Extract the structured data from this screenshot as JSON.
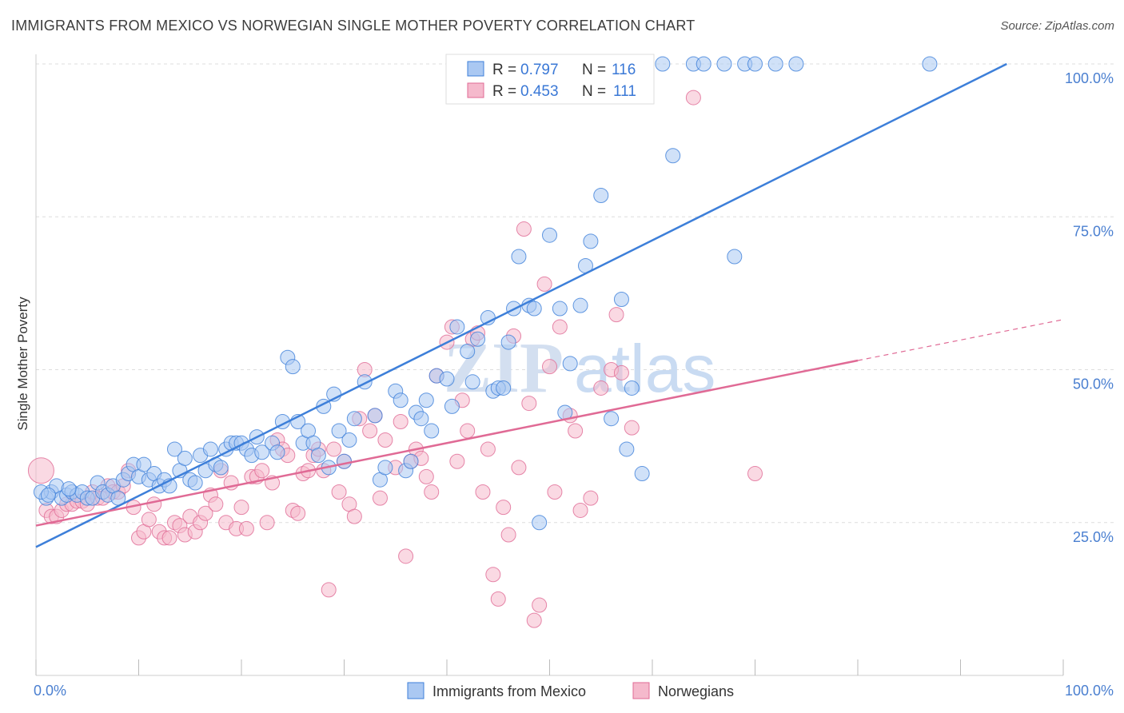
{
  "header": {
    "title": "IMMIGRANTS FROM MEXICO VS NORWEGIAN SINGLE MOTHER POVERTY CORRELATION CHART",
    "source": "Source: ZipAtlas.com"
  },
  "colors": {
    "blue": "#3d7fd9",
    "blue_fill": "#aac8f2",
    "pink": "#e06a95",
    "pink_fill": "#f5b9cc",
    "tick_text": "#4a7fd0",
    "grid": "#dddddd"
  },
  "watermark": {
    "zip": "ZIP",
    "atlas": "atlas"
  },
  "legend": {
    "r_label": "R =",
    "n_label": "N =",
    "entries": [
      {
        "r": "0.797",
        "n": "116"
      },
      {
        "r": "0.453",
        "n": "111"
      }
    ]
  },
  "chart_data": {
    "type": "scatter",
    "title": "IMMIGRANTS FROM MEXICO VS NORWEGIAN SINGLE MOTHER POVERTY CORRELATION CHART",
    "xlabel": "",
    "ylabel": "Single Mother Poverty",
    "xlim": [
      0,
      100
    ],
    "ylim": [
      0,
      100
    ],
    "x_tick_labels": [
      "0.0%",
      "100.0%"
    ],
    "y_ticks": [
      25,
      50,
      75,
      100
    ],
    "y_tick_labels": [
      "25.0%",
      "50.0%",
      "75.0%",
      "100.0%"
    ],
    "grid": true,
    "legend_position": "top-center",
    "series": [
      {
        "name": "Immigrants from Mexico",
        "color": "#3d7fd9",
        "R": 0.797,
        "N": 116,
        "trend": {
          "x": [
            0,
            94.5
          ],
          "y": [
            21.0,
            100.0
          ]
        },
        "points": [
          [
            1,
            29
          ],
          [
            1.5,
            30
          ],
          [
            2,
            31
          ],
          [
            2.5,
            29
          ],
          [
            3,
            29.5
          ],
          [
            3.5,
            30
          ],
          [
            4,
            29.5
          ],
          [
            4.5,
            30
          ],
          [
            5,
            29
          ],
          [
            5.5,
            29
          ],
          [
            6,
            31.5
          ],
          [
            6.5,
            30
          ],
          [
            7,
            29.5
          ],
          [
            7.5,
            31
          ],
          [
            8,
            29
          ],
          [
            8.5,
            32
          ],
          [
            9,
            33
          ],
          [
            9.5,
            34.5
          ],
          [
            10,
            32.5
          ],
          [
            10.5,
            34.5
          ],
          [
            11,
            32
          ],
          [
            11.5,
            33
          ],
          [
            12,
            31
          ],
          [
            12.5,
            32
          ],
          [
            13,
            31
          ],
          [
            13.5,
            37
          ],
          [
            14,
            33.5
          ],
          [
            14.5,
            35.5
          ],
          [
            15,
            32
          ],
          [
            15.5,
            31.5
          ],
          [
            16,
            36
          ],
          [
            16.5,
            33.5
          ],
          [
            17,
            37
          ],
          [
            17.5,
            34.5
          ],
          [
            18,
            34
          ],
          [
            18.5,
            37
          ],
          [
            19,
            38
          ],
          [
            19.5,
            38
          ],
          [
            20,
            38
          ],
          [
            20.5,
            37
          ],
          [
            21,
            36
          ],
          [
            21.5,
            39
          ],
          [
            22,
            36.5
          ],
          [
            23,
            38
          ],
          [
            23.5,
            36.5
          ],
          [
            24,
            41.5
          ],
          [
            24.5,
            52
          ],
          [
            25,
            50.5
          ],
          [
            25.5,
            41.5
          ],
          [
            26,
            38
          ],
          [
            26.5,
            40
          ],
          [
            27,
            38
          ],
          [
            27.5,
            36
          ],
          [
            28,
            44
          ],
          [
            28.5,
            34
          ],
          [
            29,
            46
          ],
          [
            29.5,
            40
          ],
          [
            30,
            35
          ],
          [
            30.5,
            38.5
          ],
          [
            31,
            42
          ],
          [
            32,
            48
          ],
          [
            33,
            42.5
          ],
          [
            33.5,
            32
          ],
          [
            34,
            34
          ],
          [
            35,
            46.5
          ],
          [
            35.5,
            45
          ],
          [
            36,
            33.5
          ],
          [
            36.5,
            35
          ],
          [
            37,
            43
          ],
          [
            37.5,
            42
          ],
          [
            38,
            45
          ],
          [
            38.5,
            40
          ],
          [
            39,
            49
          ],
          [
            40,
            48.5
          ],
          [
            40.5,
            44
          ],
          [
            41,
            57
          ],
          [
            42,
            53
          ],
          [
            42.5,
            48
          ],
          [
            43,
            55
          ],
          [
            44,
            58.5
          ],
          [
            44.5,
            46.5
          ],
          [
            45,
            47
          ],
          [
            45.5,
            47
          ],
          [
            46,
            54.5
          ],
          [
            46.5,
            60
          ],
          [
            47,
            68.5
          ],
          [
            48,
            60.5
          ],
          [
            48.5,
            60
          ],
          [
            49,
            25
          ],
          [
            50,
            72
          ],
          [
            51,
            60
          ],
          [
            51.5,
            43
          ],
          [
            52,
            51
          ],
          [
            53,
            60.5
          ],
          [
            53.5,
            67
          ],
          [
            54,
            71
          ],
          [
            55,
            78.5
          ],
          [
            56,
            42
          ],
          [
            57,
            61.5
          ],
          [
            57.5,
            37
          ],
          [
            58,
            47
          ],
          [
            59,
            33
          ],
          [
            61,
            100
          ],
          [
            62,
            85
          ],
          [
            64,
            100
          ],
          [
            65,
            100
          ],
          [
            67,
            100
          ],
          [
            68,
            68.5
          ],
          [
            69,
            100
          ],
          [
            70,
            100
          ],
          [
            72,
            100
          ],
          [
            74,
            100
          ],
          [
            87,
            100
          ],
          [
            0.5,
            30
          ],
          [
            1.2,
            29.5
          ],
          [
            3.2,
            30.5
          ]
        ]
      },
      {
        "name": "Norwegians",
        "color": "#e06a95",
        "R": 0.453,
        "N": 111,
        "trend": {
          "x": [
            0,
            80
          ],
          "y": [
            24.5,
            51.5
          ]
        },
        "trend_ext": {
          "x": [
            80,
            100
          ],
          "y": [
            51.5,
            58.2
          ]
        },
        "points": [
          [
            0.5,
            33.5
          ],
          [
            1,
            27
          ],
          [
            1.5,
            26
          ],
          [
            2,
            26
          ],
          [
            2.5,
            27
          ],
          [
            3,
            28
          ],
          [
            3.5,
            28
          ],
          [
            4,
            28.5
          ],
          [
            4.5,
            28.5
          ],
          [
            5,
            28
          ],
          [
            5.5,
            30
          ],
          [
            6,
            29
          ],
          [
            6.5,
            29
          ],
          [
            7,
            31
          ],
          [
            7.5,
            30
          ],
          [
            8,
            30
          ],
          [
            8.5,
            31
          ],
          [
            9,
            33.5
          ],
          [
            9.5,
            27.5
          ],
          [
            10,
            22.5
          ],
          [
            10.5,
            23.5
          ],
          [
            11,
            25.5
          ],
          [
            11.5,
            28
          ],
          [
            12,
            23.5
          ],
          [
            12.5,
            22.5
          ],
          [
            13,
            22.5
          ],
          [
            13.5,
            25
          ],
          [
            14,
            24.5
          ],
          [
            14.5,
            23
          ],
          [
            15,
            26
          ],
          [
            15.5,
            23.5
          ],
          [
            16,
            25
          ],
          [
            16.5,
            26.5
          ],
          [
            17,
            29.5
          ],
          [
            17.5,
            28
          ],
          [
            18,
            33.5
          ],
          [
            18.5,
            25
          ],
          [
            19,
            31.5
          ],
          [
            19.5,
            24
          ],
          [
            20,
            27.5
          ],
          [
            20.5,
            24
          ],
          [
            21,
            32.5
          ],
          [
            21.5,
            32.5
          ],
          [
            22,
            33.5
          ],
          [
            22.5,
            25
          ],
          [
            23,
            31.5
          ],
          [
            23.5,
            38.5
          ],
          [
            24,
            37
          ],
          [
            24.5,
            36
          ],
          [
            25,
            27
          ],
          [
            25.5,
            26.5
          ],
          [
            26,
            33
          ],
          [
            26.5,
            33.5
          ],
          [
            27,
            36
          ],
          [
            27.5,
            37
          ],
          [
            28,
            33.5
          ],
          [
            28.5,
            14
          ],
          [
            29,
            37
          ],
          [
            29.5,
            30
          ],
          [
            30,
            35
          ],
          [
            30.5,
            28
          ],
          [
            31,
            26
          ],
          [
            31.5,
            42
          ],
          [
            32,
            50
          ],
          [
            32.5,
            40
          ],
          [
            33,
            42.5
          ],
          [
            33.5,
            29
          ],
          [
            34,
            38.5
          ],
          [
            35,
            34
          ],
          [
            35.5,
            41.5
          ],
          [
            36,
            19.5
          ],
          [
            36.5,
            35
          ],
          [
            37,
            37
          ],
          [
            37.5,
            35.5
          ],
          [
            38,
            32.5
          ],
          [
            38.5,
            30
          ],
          [
            39,
            49
          ],
          [
            40,
            54.5
          ],
          [
            40.5,
            57
          ],
          [
            41,
            35
          ],
          [
            41.5,
            45
          ],
          [
            42,
            40
          ],
          [
            42.5,
            55
          ],
          [
            43,
            56
          ],
          [
            43.5,
            30
          ],
          [
            44,
            37
          ],
          [
            44.5,
            16.5
          ],
          [
            45,
            12.5
          ],
          [
            45.5,
            27.5
          ],
          [
            46,
            23
          ],
          [
            46.5,
            55.5
          ],
          [
            47,
            34
          ],
          [
            47.5,
            73
          ],
          [
            48,
            44.5
          ],
          [
            48.5,
            9
          ],
          [
            49,
            11.5
          ],
          [
            49.5,
            64
          ],
          [
            50,
            50.5
          ],
          [
            50.5,
            30
          ],
          [
            51,
            57
          ],
          [
            52,
            42.5
          ],
          [
            52.5,
            40
          ],
          [
            53,
            27
          ],
          [
            54,
            29
          ],
          [
            55,
            47
          ],
          [
            56,
            50
          ],
          [
            56.5,
            59
          ],
          [
            57,
            49.5
          ],
          [
            58,
            40.5
          ],
          [
            64,
            94.5
          ],
          [
            70,
            33
          ]
        ]
      }
    ]
  },
  "bottom_legend": {
    "items": [
      {
        "label": "Immigrants from Mexico"
      },
      {
        "label": "Norwegians"
      }
    ]
  }
}
